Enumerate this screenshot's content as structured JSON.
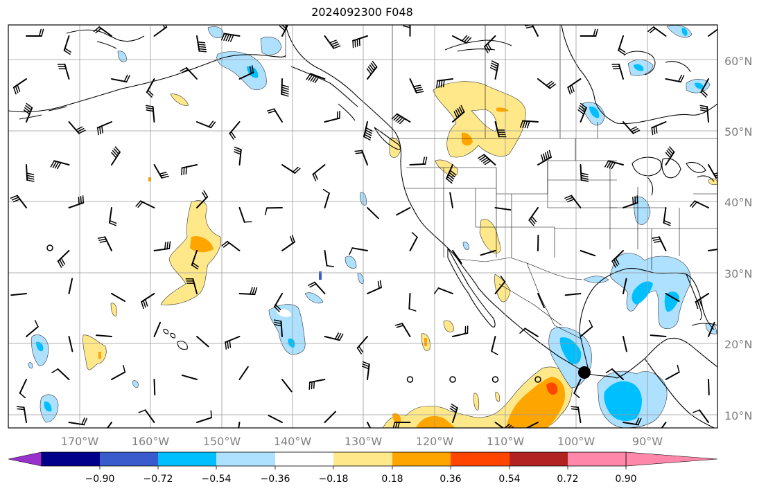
{
  "title": "2024092300 F048",
  "map": {
    "lon_range": [
      -180,
      -80
    ],
    "lat_range": [
      8,
      65
    ],
    "gridlines": true,
    "lat_labels": [
      "10°N",
      "20°N",
      "30°N",
      "40°N",
      "50°N",
      "60°N"
    ],
    "lon_labels": [
      "170°W",
      "160°W",
      "150°W",
      "140°W",
      "130°W",
      "120°W",
      "110°W",
      "100°W",
      "90°W"
    ],
    "marker": {
      "name": "location-dot",
      "lon": -98.5,
      "lat": 16.1,
      "color": "#000000"
    }
  },
  "colorbar": {
    "orientation": "horizontal",
    "extend": "both",
    "colors": [
      "#9932CC",
      "#00008B",
      "#3A5BCC",
      "#00BFFF",
      "#ADE1FF",
      "#FFFFFF",
      "#FFE88A",
      "#FFA500",
      "#FF4500",
      "#B22222",
      "#FF88AA"
    ],
    "tick_labels": [
      "−0.90",
      "−0.72",
      "−0.54",
      "−0.36",
      "−0.18",
      "0.18",
      "0.36",
      "0.54",
      "0.72",
      "0.90"
    ]
  }
}
